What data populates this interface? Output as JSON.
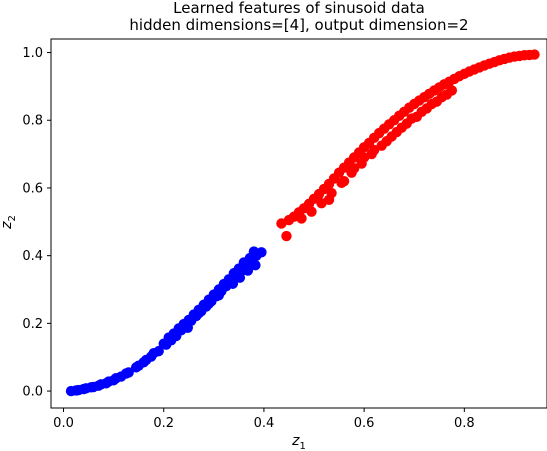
{
  "chart_data": {
    "type": "scatter",
    "title": "Learned features of sinusoid data",
    "subtitle": "hidden dimensions=[4], output dimension=2",
    "xlabel_main": "z",
    "xlabel_sub": "1",
    "ylabel_main": "z",
    "ylabel_sub": "2",
    "xlim": [
      -0.025,
      0.965
    ],
    "ylim": [
      -0.05,
      1.04
    ],
    "xticks": [
      0.0,
      0.2,
      0.4,
      0.6,
      0.8
    ],
    "xtick_labels": [
      "0.0",
      "0.2",
      "0.4",
      "0.6",
      "0.8"
    ],
    "yticks": [
      0.0,
      0.2,
      0.4,
      0.6,
      0.8,
      1.0
    ],
    "ytick_labels": [
      "0.0",
      "0.2",
      "0.4",
      "0.6",
      "0.8",
      "1.0"
    ],
    "grid": false,
    "series": [
      {
        "color": "#0000ff",
        "points": [
          [
            0.015,
            0.0
          ],
          [
            0.03,
            0.003
          ],
          [
            0.045,
            0.008
          ],
          [
            0.06,
            0.012
          ],
          [
            0.07,
            0.016
          ],
          [
            0.085,
            0.023
          ],
          [
            0.1,
            0.032
          ],
          [
            0.115,
            0.043
          ],
          [
            0.13,
            0.055
          ],
          [
            0.145,
            0.07
          ],
          [
            0.16,
            0.085
          ],
          [
            0.175,
            0.102
          ],
          [
            0.19,
            0.118
          ],
          [
            0.205,
            0.137
          ],
          [
            0.215,
            0.15
          ],
          [
            0.225,
            0.163
          ],
          [
            0.235,
            0.18
          ],
          [
            0.245,
            0.195
          ],
          [
            0.255,
            0.208
          ],
          [
            0.265,
            0.222
          ],
          [
            0.275,
            0.236
          ],
          [
            0.285,
            0.25
          ],
          [
            0.295,
            0.265
          ],
          [
            0.305,
            0.28
          ],
          [
            0.315,
            0.295
          ],
          [
            0.325,
            0.31
          ],
          [
            0.335,
            0.325
          ],
          [
            0.345,
            0.34
          ],
          [
            0.355,
            0.355
          ],
          [
            0.365,
            0.37
          ],
          [
            0.375,
            0.385
          ],
          [
            0.385,
            0.4
          ],
          [
            0.395,
            0.41
          ],
          [
            0.38,
            0.412
          ],
          [
            0.372,
            0.393
          ],
          [
            0.36,
            0.38
          ],
          [
            0.35,
            0.362
          ],
          [
            0.34,
            0.348
          ],
          [
            0.33,
            0.33
          ],
          [
            0.32,
            0.316
          ],
          [
            0.31,
            0.3
          ],
          [
            0.3,
            0.285
          ],
          [
            0.29,
            0.27
          ],
          [
            0.28,
            0.255
          ],
          [
            0.27,
            0.24
          ],
          [
            0.26,
            0.226
          ],
          [
            0.25,
            0.21
          ],
          [
            0.24,
            0.198
          ],
          [
            0.23,
            0.185
          ],
          [
            0.22,
            0.17
          ],
          [
            0.21,
            0.158
          ],
          [
            0.2,
            0.14
          ],
          [
            0.18,
            0.112
          ],
          [
            0.165,
            0.092
          ],
          [
            0.15,
            0.075
          ],
          [
            0.125,
            0.052
          ],
          [
            0.105,
            0.038
          ],
          [
            0.09,
            0.028
          ],
          [
            0.075,
            0.02
          ],
          [
            0.055,
            0.011
          ],
          [
            0.04,
            0.006
          ],
          [
            0.025,
            0.002
          ],
          [
            0.338,
            0.317
          ],
          [
            0.352,
            0.335
          ],
          [
            0.368,
            0.356
          ],
          [
            0.383,
            0.372
          ],
          [
            0.29,
            0.258
          ],
          [
            0.31,
            0.283
          ],
          [
            0.27,
            0.23
          ],
          [
            0.248,
            0.187
          ]
        ]
      },
      {
        "color": "#ff0000",
        "points": [
          [
            0.435,
            0.495
          ],
          [
            0.445,
            0.458
          ],
          [
            0.45,
            0.505
          ],
          [
            0.46,
            0.515
          ],
          [
            0.47,
            0.528
          ],
          [
            0.48,
            0.54
          ],
          [
            0.49,
            0.553
          ],
          [
            0.5,
            0.568
          ],
          [
            0.51,
            0.582
          ],
          [
            0.52,
            0.597
          ],
          [
            0.53,
            0.612
          ],
          [
            0.54,
            0.628
          ],
          [
            0.55,
            0.645
          ],
          [
            0.56,
            0.66
          ],
          [
            0.57,
            0.675
          ],
          [
            0.58,
            0.69
          ],
          [
            0.59,
            0.705
          ],
          [
            0.6,
            0.72
          ],
          [
            0.61,
            0.733
          ],
          [
            0.62,
            0.748
          ],
          [
            0.63,
            0.762
          ],
          [
            0.64,
            0.775
          ],
          [
            0.65,
            0.788
          ],
          [
            0.66,
            0.8
          ],
          [
            0.67,
            0.813
          ],
          [
            0.68,
            0.825
          ],
          [
            0.69,
            0.837
          ],
          [
            0.7,
            0.848
          ],
          [
            0.71,
            0.858
          ],
          [
            0.72,
            0.868
          ],
          [
            0.73,
            0.878
          ],
          [
            0.74,
            0.888
          ],
          [
            0.75,
            0.897
          ],
          [
            0.76,
            0.906
          ],
          [
            0.77,
            0.914
          ],
          [
            0.78,
            0.922
          ],
          [
            0.79,
            0.93
          ],
          [
            0.8,
            0.937
          ],
          [
            0.81,
            0.944
          ],
          [
            0.82,
            0.95
          ],
          [
            0.83,
            0.956
          ],
          [
            0.84,
            0.962
          ],
          [
            0.85,
            0.967
          ],
          [
            0.86,
            0.972
          ],
          [
            0.87,
            0.977
          ],
          [
            0.88,
            0.981
          ],
          [
            0.89,
            0.985
          ],
          [
            0.9,
            0.988
          ],
          [
            0.91,
            0.99
          ],
          [
            0.92,
            0.992
          ],
          [
            0.93,
            0.993
          ],
          [
            0.94,
            0.994
          ],
          [
            0.475,
            0.51
          ],
          [
            0.495,
            0.53
          ],
          [
            0.515,
            0.555
          ],
          [
            0.535,
            0.585
          ],
          [
            0.555,
            0.615
          ],
          [
            0.575,
            0.645
          ],
          [
            0.595,
            0.672
          ],
          [
            0.615,
            0.7
          ],
          [
            0.635,
            0.725
          ],
          [
            0.655,
            0.752
          ],
          [
            0.675,
            0.778
          ],
          [
            0.695,
            0.805
          ],
          [
            0.715,
            0.825
          ],
          [
            0.735,
            0.848
          ],
          [
            0.755,
            0.868
          ],
          [
            0.775,
            0.888
          ],
          [
            0.53,
            0.565
          ],
          [
            0.56,
            0.62
          ],
          [
            0.58,
            0.658
          ],
          [
            0.6,
            0.69
          ],
          [
            0.62,
            0.712
          ],
          [
            0.645,
            0.738
          ],
          [
            0.665,
            0.765
          ],
          [
            0.685,
            0.79
          ],
          [
            0.705,
            0.81
          ],
          [
            0.725,
            0.835
          ],
          [
            0.745,
            0.855
          ],
          [
            0.765,
            0.876
          ]
        ]
      }
    ]
  }
}
